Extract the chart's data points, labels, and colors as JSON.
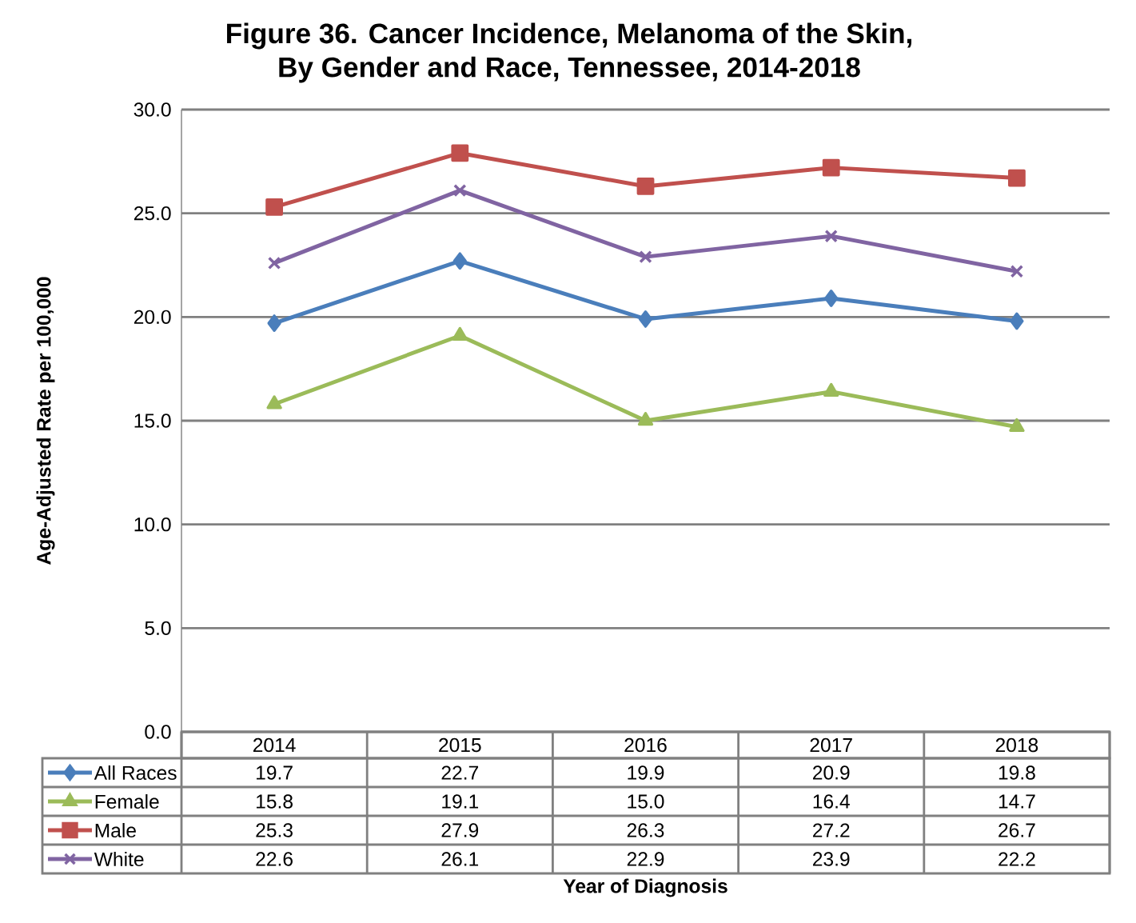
{
  "chart_data": {
    "type": "line",
    "title": "Figure 36. Cancer Incidence, Melanoma of the Skin,\nBy Gender and Race, Tennessee, 2014-2018",
    "annotations": [
      "Year of Diagnosis"
    ],
    "ylabel": "Age-Adjusted Rate per 100,000",
    "categories": [
      "2014",
      "2015",
      "2016",
      "2017",
      "2018"
    ],
    "series": [
      {
        "name": "All Races",
        "color": "#4a7ebb",
        "marker": "diamond",
        "values": [
          19.7,
          22.7,
          19.9,
          20.9,
          19.8
        ],
        "value_labels": [
          "19.7",
          "22.7",
          "19.9",
          "20.9",
          "19.8"
        ]
      },
      {
        "name": "Female",
        "color": "#9bbb59",
        "marker": "triangle",
        "values": [
          15.8,
          19.1,
          15.0,
          16.4,
          14.7
        ],
        "value_labels": [
          "15.8",
          "19.1",
          "15.0",
          "16.4",
          "14.7"
        ]
      },
      {
        "name": "Male",
        "color": "#c0504d",
        "marker": "square",
        "values": [
          25.3,
          27.9,
          26.3,
          27.2,
          26.7
        ],
        "value_labels": [
          "25.3",
          "27.9",
          "26.3",
          "27.2",
          "26.7"
        ]
      },
      {
        "name": "White",
        "color": "#8064a2",
        "marker": "cross",
        "values": [
          22.6,
          26.1,
          22.9,
          23.9,
          22.2
        ],
        "value_labels": [
          "22.6",
          "26.1",
          "22.9",
          "23.9",
          "22.2"
        ]
      }
    ],
    "ylim": [
      0,
      30
    ],
    "yticks": [
      {
        "value": 0,
        "label": "0.0"
      },
      {
        "value": 5,
        "label": "5.0"
      },
      {
        "value": 10,
        "label": "10.0"
      },
      {
        "value": 15,
        "label": "15.0"
      },
      {
        "value": 20,
        "label": "20.0"
      },
      {
        "value": 25,
        "label": "25.0"
      },
      {
        "value": 30,
        "label": "30.0"
      }
    ],
    "grid": "y",
    "legend": "bottom"
  }
}
